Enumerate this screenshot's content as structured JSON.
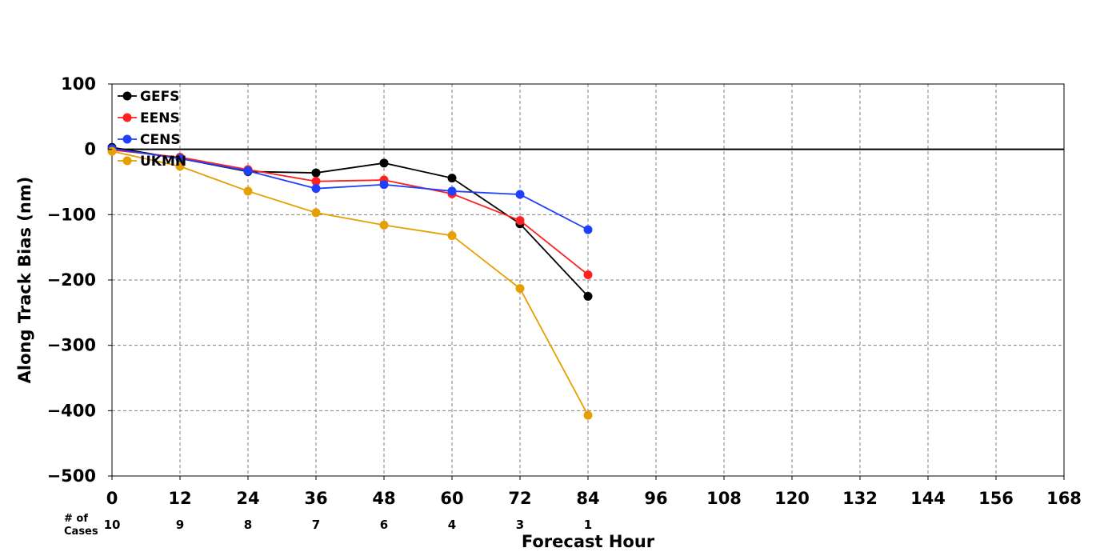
{
  "chart_data": {
    "type": "line",
    "xlabel": "Forecast Hour",
    "ylabel": "Along Track Bias (nm)",
    "xlim": [
      0,
      168
    ],
    "ylim": [
      -500,
      100
    ],
    "xticks": [
      0,
      12,
      24,
      36,
      48,
      60,
      72,
      84,
      96,
      108,
      120,
      132,
      144,
      156,
      168
    ],
    "yticks": [
      100,
      0,
      -100,
      -200,
      -300,
      -400,
      -500
    ],
    "grid": true,
    "legend_position": "top-left",
    "zero_line": true,
    "cases_label_line1": "# of",
    "cases_label_line2": "Cases",
    "cases": [
      {
        "x": 0,
        "n": "10"
      },
      {
        "x": 12,
        "n": "9"
      },
      {
        "x": 24,
        "n": "8"
      },
      {
        "x": 36,
        "n": "7"
      },
      {
        "x": 48,
        "n": "6"
      },
      {
        "x": 60,
        "n": "4"
      },
      {
        "x": 72,
        "n": "3"
      },
      {
        "x": 84,
        "n": "1"
      }
    ],
    "series": [
      {
        "name": "GEFS",
        "color": "#000000",
        "x": [
          0,
          12,
          24,
          36,
          48,
          60,
          72,
          84
        ],
        "values": [
          3,
          -14,
          -34,
          -36,
          -21,
          -44,
          -114,
          -225
        ]
      },
      {
        "name": "EENS",
        "color": "#ff2020",
        "x": [
          0,
          12,
          24,
          36,
          48,
          60,
          72,
          84
        ],
        "values": [
          -1,
          -12,
          -31,
          -49,
          -47,
          -68,
          -109,
          -192
        ]
      },
      {
        "name": "CENS",
        "color": "#1f3fff",
        "x": [
          0,
          12,
          24,
          36,
          48,
          60,
          72,
          84
        ],
        "values": [
          1,
          -14,
          -33,
          -60,
          -54,
          -64,
          -69,
          -123
        ]
      },
      {
        "name": "UKMN",
        "color": "#e69f00",
        "x": [
          0,
          12,
          24,
          36,
          48,
          60,
          72,
          84
        ],
        "values": [
          -3,
          -26,
          -64,
          -97,
          -116,
          -132,
          -213,
          -407
        ]
      }
    ]
  }
}
